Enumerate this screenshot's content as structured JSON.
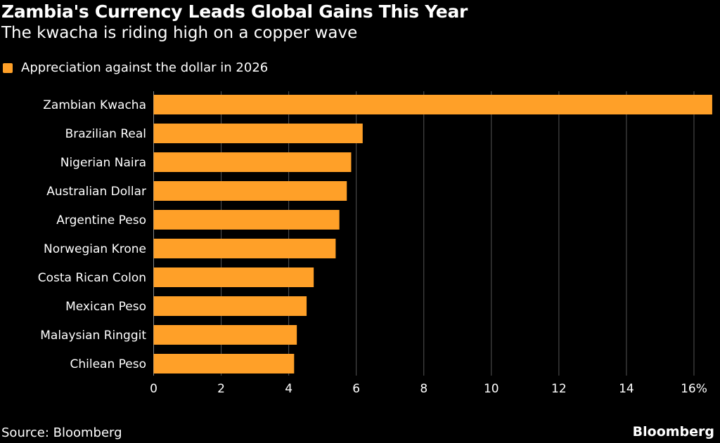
{
  "title": "Zambia's Currency Leads Global Gains This Year",
  "subtitle": "The kwacha is riding high on a copper wave",
  "source": "Source: Bloomberg",
  "brand": "Bloomberg",
  "colors": {
    "bar": "#ffa028",
    "background": "#000000",
    "grid": "#555555"
  },
  "chart_data": {
    "type": "bar",
    "orientation": "horizontal",
    "categories": [
      "Zambian Kwacha",
      "Brazilian Real",
      "Nigerian Naira",
      "Australian Dollar",
      "Argentine Peso",
      "Norwegian Krone",
      "Costa Rican Colon",
      "Mexican Peso",
      "Malaysian Ringgit",
      "Chilean Peso"
    ],
    "series": [
      {
        "name": "Appreciation against the dollar in 2026",
        "values": [
          16.54,
          6.19,
          5.85,
          5.72,
          5.5,
          5.39,
          4.74,
          4.53,
          4.24,
          4.16
        ]
      }
    ],
    "xlim": [
      0,
      16.6
    ],
    "ticks": [
      0,
      2,
      4,
      6,
      8,
      10,
      12,
      14,
      16
    ],
    "tick_labels": [
      "0",
      "2",
      "4",
      "6",
      "8",
      "10",
      "12",
      "14",
      "16%"
    ],
    "grid": true,
    "legend": "top-left"
  }
}
